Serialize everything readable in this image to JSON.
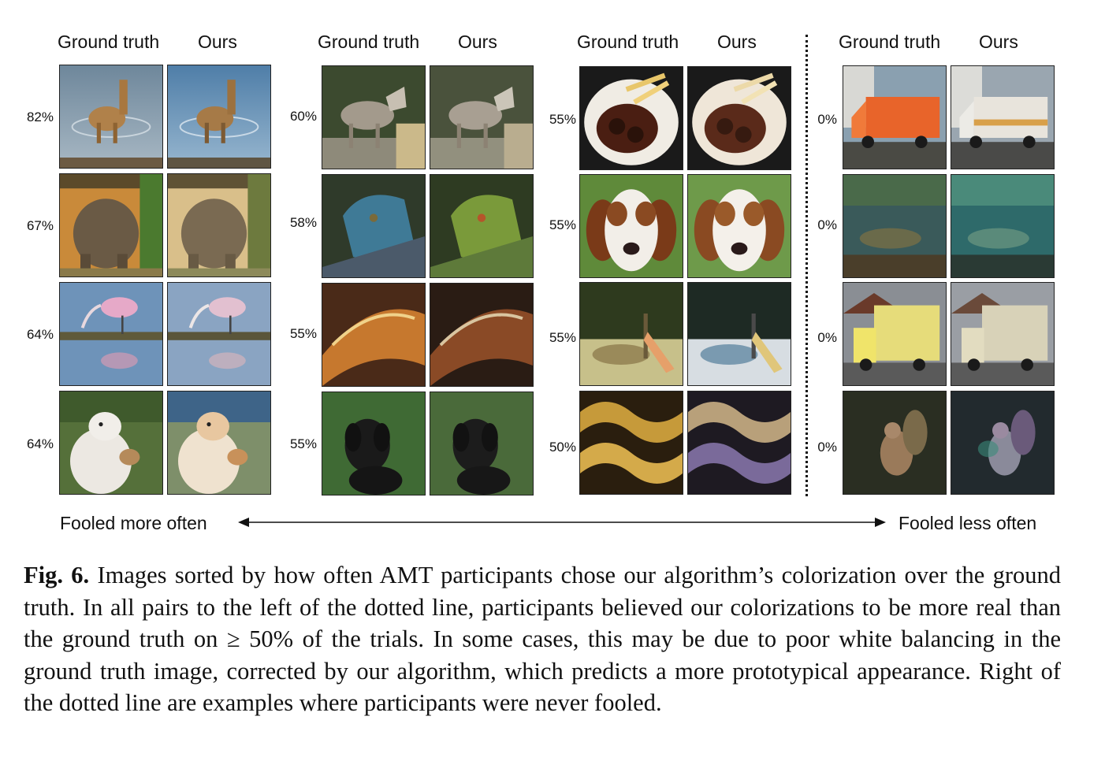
{
  "figure": {
    "headers": {
      "ground_truth": "Ground truth",
      "ours": "Ours"
    },
    "groups": [
      {
        "percents": [
          "82%",
          "67%",
          "64%",
          "64%"
        ]
      },
      {
        "percents": [
          "60%",
          "58%",
          "55%",
          "55%"
        ]
      },
      {
        "percents": [
          "55%",
          "55%",
          "55%",
          "50%"
        ]
      },
      {
        "percents": [
          "0%",
          "0%",
          "0%",
          "0%"
        ]
      }
    ],
    "axis": {
      "left_label": "Fooled more often",
      "right_label": "Fooled less often"
    }
  },
  "caption": {
    "label": "Fig. 6.",
    "text": " Images sorted by how often AMT participants chose our algorithm’s colorization over the ground truth. In all pairs to the left of the dotted line, participants believed our colorizations to be more real than the ground truth on ≥ 50% of the trials. In some cases, this may be due to poor white balancing in the ground truth image, corrected by our algorithm, which predicts a more prototypical appearance. Right of the dotted line are examples where participants were never fooled."
  }
}
